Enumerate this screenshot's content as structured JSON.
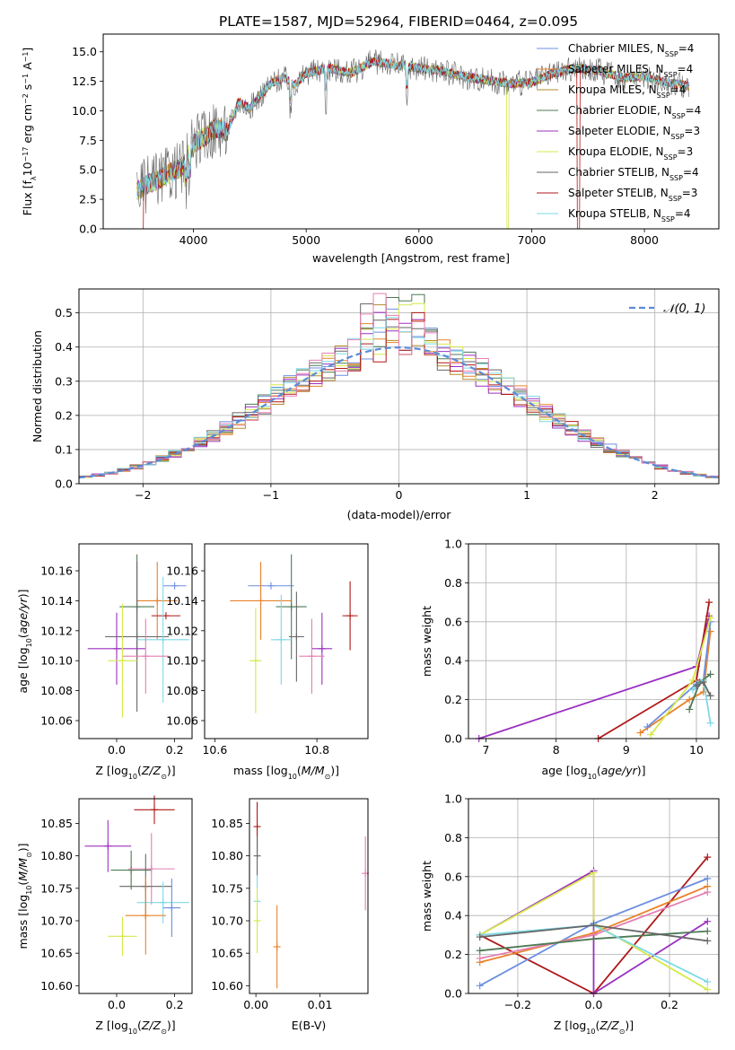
{
  "title": "PLATE=1587, MJD=52964, FIBERID=0464, z=0.095",
  "colors": {
    "chabrier_miles": "#6c8ee0",
    "salpeter_miles": "#e8822a",
    "kroupa_miles": "#b58a2c",
    "chabrier_elodie": "#4d7a55",
    "salpeter_elodie": "#9b30c0",
    "kroupa_elodie": "#d6e84a",
    "chabrier_stelib": "#666666",
    "salpeter_stelib": "#b01818",
    "kroupa_stelib": "#7fd8e6",
    "pink": "#e57fb3",
    "normal": "#5b8bd6",
    "grid": "#b0b0b0"
  },
  "chart_data": [
    {
      "type": "line",
      "name": "spectrum",
      "xlabel": "wavelength [Angstrom, rest frame]",
      "ylabel": "Flux [f$_\\lambda$10$^{-17}$ erg cm$^{-2}$ s$^{-1}$ A$^{-1}$]",
      "xlim": [
        3200,
        8660
      ],
      "ylim": [
        0,
        16.5
      ],
      "xticks": [
        4000,
        5000,
        6000,
        7000,
        8000
      ],
      "yticks": [
        "0.0",
        "2.5",
        "5.0",
        "7.5",
        "10.0",
        "12.5",
        "15.0"
      ],
      "legend_placement": "right",
      "series": [
        {
          "name": "Chabrier MILES, N$_{SSP}$=4",
          "n": 4
        },
        {
          "name": "Salpeter MILES, N$_{SSP}$=4",
          "n": 4
        },
        {
          "name": "Kroupa MILES, N$_{SSP}$=4",
          "n": 4
        },
        {
          "name": "Chabrier ELODIE, N$_{SSP}$=4",
          "n": 4
        },
        {
          "name": "Salpeter ELODIE, N$_{SSP}$=3",
          "n": 3
        },
        {
          "name": "Kroupa ELODIE, N$_{SSP}$=3",
          "n": 3
        },
        {
          "name": "Chabrier STELIB, N$_{SSP}$=4",
          "n": 4
        },
        {
          "name": "Salpeter STELIB, N$_{SSP}$=3",
          "n": 3
        },
        {
          "name": "Kroupa STELIB, N$_{SSP}$=4",
          "n": 4
        }
      ],
      "legend_labels": [
        {
          "model": "Chabrier MILES, N",
          "sub": "SSP",
          "val": "=4"
        },
        {
          "model": "Salpeter MILES, N",
          "sub": "SSP",
          "val": "=4"
        },
        {
          "model": "Kroupa MILES, N",
          "sub": "SSP",
          "val": "=4"
        },
        {
          "model": "Chabrier ELODIE, N",
          "sub": "SSP",
          "val": "=4"
        },
        {
          "model": "Salpeter ELODIE, N",
          "sub": "SSP",
          "val": "=3"
        },
        {
          "model": "Kroupa ELODIE, N",
          "sub": "SSP",
          "val": "=3"
        },
        {
          "model": "Chabrier STELIB, N",
          "sub": "SSP",
          "val": "=4"
        },
        {
          "model": "Salpeter STELIB, N",
          "sub": "SSP",
          "val": "=3"
        },
        {
          "model": "Kroupa STELIB, N",
          "sub": "SSP",
          "val": "=4"
        }
      ],
      "envelope": {
        "x": [
          3500,
          3600,
          3700,
          3800,
          3900,
          4000,
          4100,
          4200,
          4300,
          4400,
          4500,
          4600,
          4700,
          4800,
          4900,
          5000,
          5200,
          5400,
          5600,
          5800,
          6000,
          6200,
          6400,
          6600,
          6800,
          7000,
          7200,
          7400,
          7600,
          7800,
          8000,
          8200,
          8400
        ],
        "y": [
          3.2,
          3.8,
          4.2,
          4.8,
          5.2,
          7.2,
          7.8,
          8.6,
          8.2,
          10.8,
          10.2,
          11.4,
          12.4,
          12.8,
          12.2,
          13.2,
          13.6,
          13.2,
          14.2,
          13.9,
          13.6,
          13.4,
          12.9,
          12.6,
          12.3,
          12.4,
          13.2,
          13.6,
          13.4,
          12.8,
          12.9,
          12.4,
          12.1
        ]
      }
    },
    {
      "type": "line",
      "name": "residual histogram",
      "xlabel": "(data-model)/error",
      "ylabel": "Normed distribution",
      "xlim": [
        -2.5,
        2.5
      ],
      "ylim": [
        0,
        0.57
      ],
      "xticks": [
        "−2",
        "−1",
        "0",
        "1",
        "2"
      ],
      "yticks": [
        "0.0",
        "0.1",
        "0.2",
        "0.3",
        "0.4",
        "0.5"
      ],
      "grid": true,
      "legend_placement": "top-right",
      "series": [
        {
          "name": "$\\mathcal{N}(0,1)$",
          "style": "dashed"
        }
      ],
      "hist_bins": {
        "start": -2.5,
        "width": 0.1,
        "count": 50
      }
    },
    {
      "type": "scatter",
      "name": "age vs Z",
      "xlabel": "Z [log$_{10}$($Z/Z_\\odot$)]",
      "ylabel": "age  [log$_{10}$($age/yr$)]",
      "xlim": [
        -0.13,
        0.26
      ],
      "ylim": [
        10.048,
        10.178
      ],
      "xticks": [
        "0.0",
        "0.2"
      ],
      "yticks": [
        "10.06",
        "10.08",
        "10.10",
        "10.12",
        "10.14",
        "10.16"
      ],
      "points": [
        {
          "x": 0.2,
          "y": 10.15,
          "xerr": 0.04,
          "yerr": 0.0,
          "c": "chabrier_miles"
        },
        {
          "x": 0.14,
          "y": 10.14,
          "xerr": 0.07,
          "yerr": 0.026,
          "c": "salpeter_miles"
        },
        {
          "x": 0.07,
          "y": 10.136,
          "xerr": 0.06,
          "yerr": 0.035,
          "c": "chabrier_elodie"
        },
        {
          "x": 0.17,
          "y": 10.13,
          "xerr": 0.05,
          "yerr": 0.0,
          "c": "salpeter_stelib"
        },
        {
          "x": 0.07,
          "y": 10.116,
          "xerr": 0.11,
          "yerr": 0.05,
          "c": "chabrier_stelib"
        },
        {
          "x": 0.16,
          "y": 10.114,
          "xerr": 0.09,
          "yerr": 0.042,
          "c": "kroupa_stelib"
        },
        {
          "x": 0.0,
          "y": 10.108,
          "xerr": 0.1,
          "yerr": 0.024,
          "c": "salpeter_elodie"
        },
        {
          "x": 0.1,
          "y": 10.103,
          "xerr": 0.08,
          "yerr": 0.025,
          "c": "pink"
        },
        {
          "x": 0.02,
          "y": 10.1,
          "xerr": 0.05,
          "yerr": 0.038,
          "c": "kroupa_elodie"
        }
      ]
    },
    {
      "type": "scatter",
      "name": "age vs mass",
      "xlabel": "mass [log$_{10}$($M/M_\\odot$)]",
      "ylabel": "",
      "xlim": [
        10.58,
        10.9
      ],
      "ylim": [
        10.048,
        10.178
      ],
      "xticks": [
        "10.6",
        "10.8"
      ],
      "yticks": [
        "10.06",
        "10.08",
        "10.10",
        "10.12",
        "10.14",
        "10.16"
      ],
      "points": [
        {
          "x": 10.71,
          "y": 10.15,
          "xerr": 0.045,
          "yerr": 0.0,
          "c": "chabrier_miles"
        },
        {
          "x": 10.69,
          "y": 10.14,
          "xerr": 0.06,
          "yerr": 0.026,
          "c": "salpeter_miles"
        },
        {
          "x": 10.75,
          "y": 10.136,
          "xerr": 0.03,
          "yerr": 0.035,
          "c": "chabrier_elodie"
        },
        {
          "x": 10.865,
          "y": 10.13,
          "xerr": 0.015,
          "yerr": 0.023,
          "c": "salpeter_stelib"
        },
        {
          "x": 10.76,
          "y": 10.116,
          "xerr": 0.015,
          "yerr": 0.03,
          "c": "chabrier_stelib"
        },
        {
          "x": 10.73,
          "y": 10.114,
          "xerr": 0.02,
          "yerr": 0.03,
          "c": "kroupa_stelib"
        },
        {
          "x": 10.81,
          "y": 10.108,
          "xerr": 0.02,
          "yerr": 0.024,
          "c": "salpeter_elodie"
        },
        {
          "x": 10.79,
          "y": 10.103,
          "xerr": 0.025,
          "yerr": 0.025,
          "c": "pink"
        },
        {
          "x": 10.68,
          "y": 10.1,
          "xerr": 0.012,
          "yerr": 0.035,
          "c": "kroupa_elodie"
        }
      ]
    },
    {
      "type": "line",
      "name": "mass weight vs age",
      "xlabel": "age  [log$_{10}$($age/yr$)]",
      "ylabel": "mass weight",
      "xlim": [
        6.75,
        10.32
      ],
      "ylim": [
        0,
        1.0
      ],
      "xticks": [
        "7",
        "8",
        "9",
        "10"
      ],
      "yticks": [
        "0.0",
        "0.2",
        "0.4",
        "0.6",
        "0.8",
        "1.0"
      ],
      "grid": true,
      "series": [
        {
          "c": "salpeter_elodie",
          "x": [
            6.9,
            10.0,
            10.18
          ],
          "y": [
            0.0,
            0.37,
            0.63
          ]
        },
        {
          "c": "salpeter_stelib",
          "x": [
            8.6,
            10.0,
            10.18
          ],
          "y": [
            0.0,
            0.3,
            0.7
          ]
        },
        {
          "c": "salpeter_miles",
          "x": [
            9.2,
            9.9,
            10.1,
            10.2
          ],
          "y": [
            0.03,
            0.2,
            0.24,
            0.55
          ]
        },
        {
          "c": "chabrier_miles",
          "x": [
            9.3,
            10.0,
            10.1,
            10.2
          ],
          "y": [
            0.06,
            0.28,
            0.3,
            0.6
          ]
        },
        {
          "c": "kroupa_elodie",
          "x": [
            9.35,
            9.95,
            10.2
          ],
          "y": [
            0.02,
            0.3,
            0.62
          ]
        },
        {
          "c": "chabrier_elodie",
          "x": [
            9.9,
            10.05,
            10.2
          ],
          "y": [
            0.15,
            0.29,
            0.33
          ]
        },
        {
          "c": "kroupa_stelib",
          "x": [
            9.95,
            10.1,
            10.2
          ],
          "y": [
            0.25,
            0.3,
            0.08
          ]
        },
        {
          "c": "chabrier_stelib",
          "x": [
            10.0,
            10.1,
            10.2
          ],
          "y": [
            0.27,
            0.29,
            0.22
          ]
        }
      ]
    },
    {
      "type": "scatter",
      "name": "mass vs Z",
      "xlabel": "Z [log$_{10}$($Z/Z_\\odot$)]",
      "ylabel": "mass [log$_{10}$($M/M_\\odot$)]",
      "xlim": [
        -0.13,
        0.26
      ],
      "ylim": [
        10.588,
        10.888
      ],
      "xticks": [
        "0.0",
        "0.2"
      ],
      "yticks": [
        "10.60",
        "10.65",
        "10.70",
        "10.75",
        "10.80",
        "10.85"
      ],
      "points": [
        {
          "x": 0.13,
          "y": 10.871,
          "xerr": 0.07,
          "yerr": 0.022,
          "c": "salpeter_stelib"
        },
        {
          "x": -0.03,
          "y": 10.815,
          "xerr": 0.08,
          "yerr": 0.04,
          "c": "salpeter_elodie"
        },
        {
          "x": 0.05,
          "y": 10.778,
          "xerr": 0.07,
          "yerr": 0.03,
          "c": "chabrier_elodie"
        },
        {
          "x": 0.12,
          "y": 10.78,
          "xerr": 0.08,
          "yerr": 0.055,
          "c": "pink"
        },
        {
          "x": 0.1,
          "y": 10.753,
          "xerr": 0.09,
          "yerr": 0.05,
          "c": "chabrier_stelib"
        },
        {
          "x": 0.16,
          "y": 10.728,
          "xerr": 0.09,
          "yerr": 0.032,
          "c": "kroupa_stelib"
        },
        {
          "x": 0.19,
          "y": 10.72,
          "xerr": 0.03,
          "yerr": 0.045,
          "c": "chabrier_miles"
        },
        {
          "x": 0.1,
          "y": 10.708,
          "xerr": 0.07,
          "yerr": 0.06,
          "c": "salpeter_miles"
        },
        {
          "x": 0.02,
          "y": 10.676,
          "xerr": 0.05,
          "yerr": 0.03,
          "c": "kroupa_elodie"
        }
      ]
    },
    {
      "type": "scatter",
      "name": "mass vs E(B-V)",
      "xlabel": "E(B-V)",
      "ylabel": "",
      "xlim": [
        -0.001,
        0.0175
      ],
      "ylim": [
        10.588,
        10.888
      ],
      "xticks": [
        "0.00",
        "0.01"
      ],
      "yticks": [
        "10.60",
        "10.65",
        "10.70",
        "10.75",
        "10.80",
        "10.85"
      ],
      "points": [
        {
          "x": 0.0002,
          "y": 10.845,
          "xerr": 0,
          "yerr": 0.038,
          "c": "salpeter_stelib"
        },
        {
          "x": 0.0002,
          "y": 10.8,
          "xerr": 0,
          "yerr": 0.03,
          "c": "chabrier_stelib"
        },
        {
          "x": 0.0002,
          "y": 10.73,
          "xerr": 0,
          "yerr": 0.04,
          "c": "kroupa_stelib"
        },
        {
          "x": 0.0002,
          "y": 10.7,
          "xerr": 0,
          "yerr": 0.05,
          "c": "kroupa_elodie"
        },
        {
          "x": 0.0033,
          "y": 10.66,
          "xerr": 0,
          "yerr": 0.064,
          "c": "salpeter_miles"
        },
        {
          "x": 0.0171,
          "y": 10.773,
          "xerr": 0,
          "yerr": 0.057,
          "c": "pink"
        }
      ]
    },
    {
      "type": "line",
      "name": "mass weight vs Z",
      "xlabel": "Z [log$_{10}$($Z/Z_\\odot$)]",
      "ylabel": "mass weight",
      "xlim": [
        -0.33,
        0.33
      ],
      "ylim": [
        0,
        1.0
      ],
      "xticks": [
        "−0.2",
        "0.0",
        "0.2"
      ],
      "yticks": [
        "0.0",
        "0.2",
        "0.4",
        "0.6",
        "0.8",
        "1.0"
      ],
      "grid": true,
      "series": [
        {
          "c": "salpeter_stelib",
          "x": [
            -0.3,
            0.0,
            0.3
          ],
          "y": [
            0.3,
            0.0,
            0.7
          ]
        },
        {
          "c": "salpeter_elodie",
          "x": [
            -0.3,
            0.0,
            0.0,
            0.3
          ],
          "y": [
            0.3,
            0.63,
            0.0,
            0.37
          ]
        },
        {
          "c": "kroupa_elodie",
          "x": [
            -0.3,
            0.0,
            0.0,
            0.3
          ],
          "y": [
            0.3,
            0.62,
            0.36,
            0.02
          ]
        },
        {
          "c": "chabrier_miles",
          "x": [
            -0.3,
            0.0,
            0.3
          ],
          "y": [
            0.04,
            0.36,
            0.59
          ]
        },
        {
          "c": "salpeter_miles",
          "x": [
            -0.3,
            0.0,
            0.3
          ],
          "y": [
            0.16,
            0.31,
            0.55
          ]
        },
        {
          "c": "pink",
          "x": [
            -0.3,
            0.0,
            0.3
          ],
          "y": [
            0.18,
            0.3,
            0.52
          ]
        },
        {
          "c": "chabrier_elodie",
          "x": [
            -0.3,
            0.0,
            0.3
          ],
          "y": [
            0.22,
            0.28,
            0.32
          ]
        },
        {
          "c": "kroupa_stelib",
          "x": [
            -0.3,
            0.0,
            0.3
          ],
          "y": [
            0.3,
            0.35,
            0.06
          ]
        },
        {
          "c": "chabrier_stelib",
          "x": [
            -0.3,
            0.0,
            0.3
          ],
          "y": [
            0.29,
            0.35,
            0.27
          ]
        }
      ]
    }
  ]
}
